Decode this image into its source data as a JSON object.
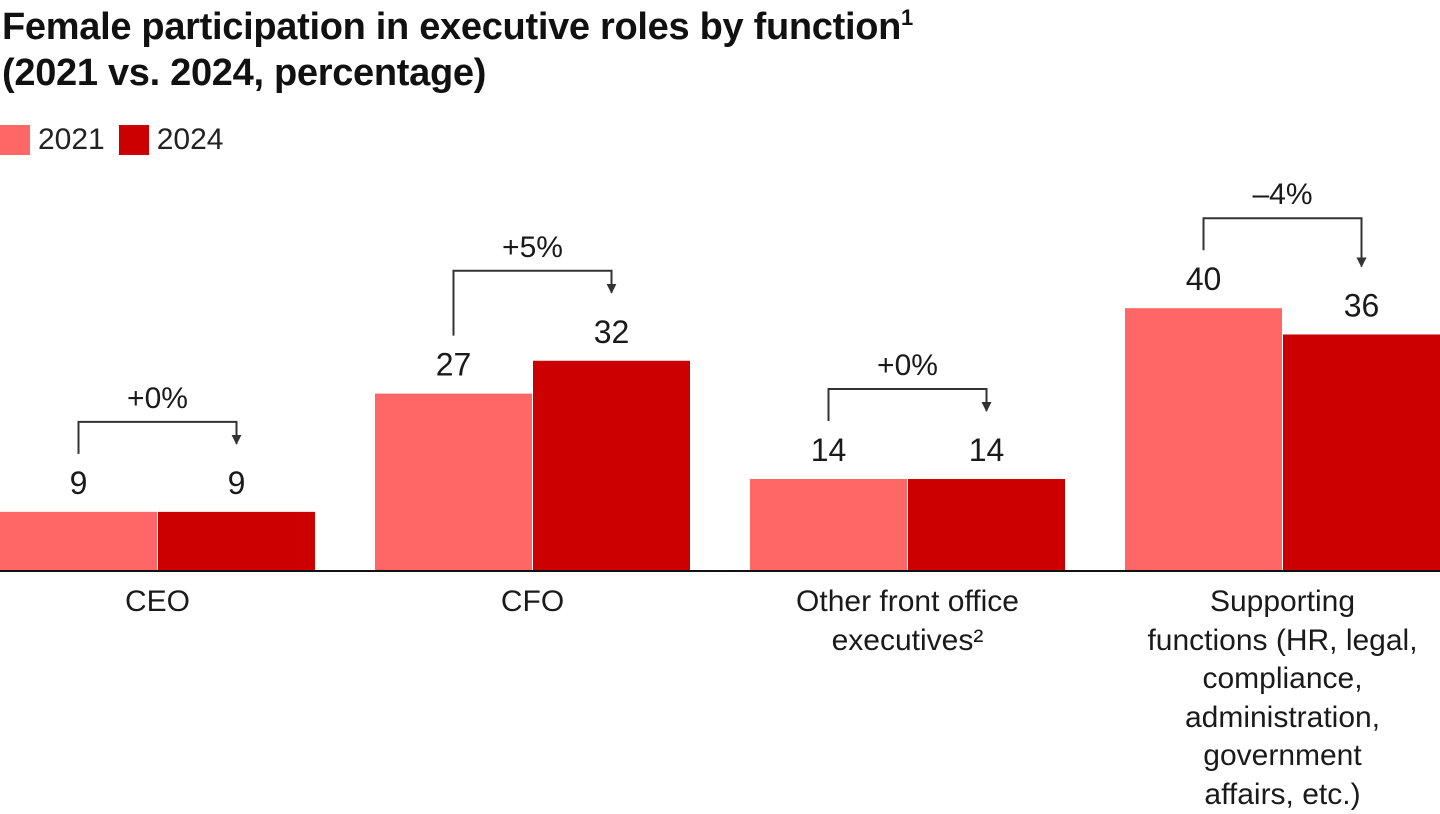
{
  "title": {
    "line1": "Female participation in executive roles by function",
    "line1_sup": "1",
    "line2": "(2021 vs. 2024, percentage)"
  },
  "colors": {
    "2021": "#ff6666",
    "2024": "#cc0000",
    "axis": "#111111",
    "bracket": "#333333"
  },
  "chart_data": {
    "type": "bar",
    "title": "Female participation in executive roles by function (2021 vs. 2024, percentage)",
    "xlabel": "",
    "ylabel": "",
    "legend_position": "top-left",
    "grid": false,
    "categories": [
      "CEO",
      "CFO",
      "Other front office executives²",
      "Supporting functions (HR, legal, compliance, administration, government affairs, etc.)"
    ],
    "category_lines": [
      [
        "CEO"
      ],
      [
        "CFO"
      ],
      [
        "Other front office",
        "executives²"
      ],
      [
        "Supporting",
        "functions (HR, legal,",
        "compliance,",
        "administration,",
        "government",
        "affairs, etc.)"
      ]
    ],
    "series": [
      {
        "name": "2021",
        "values": [
          9,
          27,
          14,
          40
        ]
      },
      {
        "name": "2024",
        "values": [
          9,
          32,
          14,
          36
        ]
      }
    ],
    "changes": [
      "+0%",
      "+5%",
      "+0%",
      "–4%"
    ],
    "ylim": [
      0,
      40
    ]
  }
}
